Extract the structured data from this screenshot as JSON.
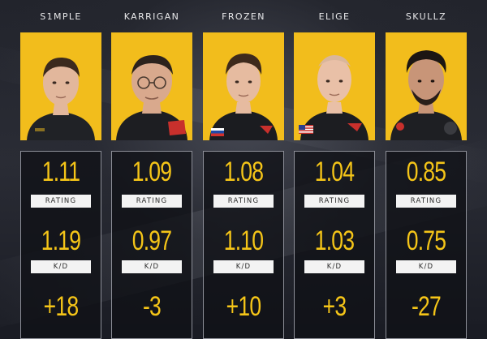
{
  "players": [
    {
      "name": "S1MPLE",
      "rating": "1.11",
      "kd": "1.19",
      "diff": "+18",
      "rating_label": "RATING",
      "kd_label": "K/D",
      "skin": "#e2b79c",
      "hair": "#3b2a1e",
      "shirt": "#202226"
    },
    {
      "name": "KARRIGAN",
      "rating": "1.09",
      "kd": "0.97",
      "diff": "-3",
      "rating_label": "RATING",
      "kd_label": "K/D",
      "skin": "#d9a98d",
      "hair": "#2c221d",
      "shirt": "#1d1e22"
    },
    {
      "name": "FROZEN",
      "rating": "1.08",
      "kd": "1.10",
      "diff": "+10",
      "rating_label": "RATING",
      "kd_label": "K/D",
      "skin": "#e6bba0",
      "hair": "#3e2a1c",
      "shirt": "#1b1c20"
    },
    {
      "name": "ELIGE",
      "rating": "1.04",
      "kd": "1.03",
      "diff": "+3",
      "rating_label": "RATING",
      "kd_label": "K/D",
      "skin": "#e9c0a7",
      "hair": "#d9b69c",
      "shirt": "#1c1d21"
    },
    {
      "name": "SKULLZ",
      "rating": "0.85",
      "kd": "0.75",
      "diff": "-27",
      "rating_label": "RATING",
      "kd_label": "K/D",
      "skin": "#c89578",
      "hair": "#1c1613",
      "shirt": "#1e1f23"
    }
  ]
}
